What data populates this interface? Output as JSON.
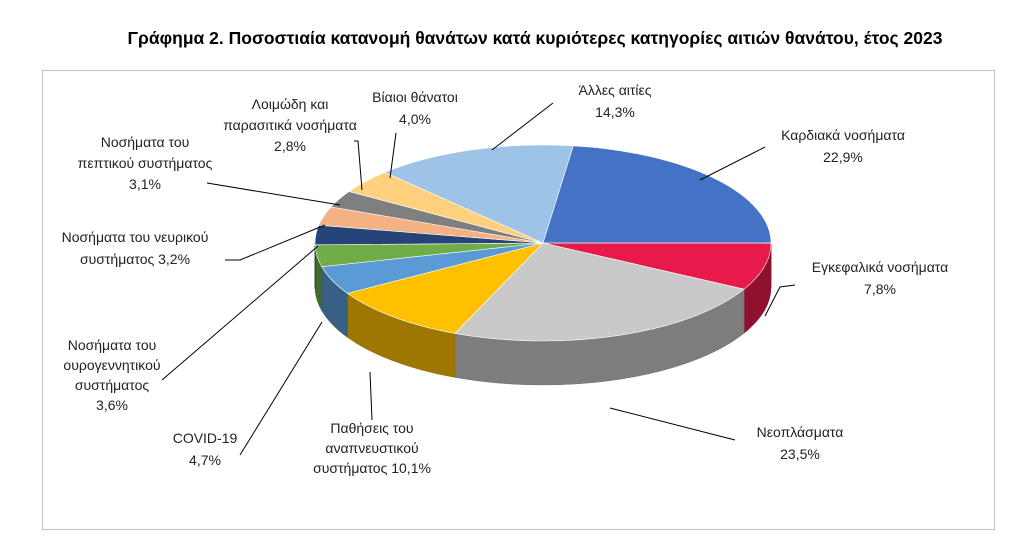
{
  "chart_data": {
    "type": "pie",
    "style": "3d",
    "title": "Γράφημα 2. Ποσοστιαία κατανομή θανάτων κατά κυριότερες κατηγορίες αιτιών θανάτου, έτος 2023",
    "unit": "%",
    "slices": [
      {
        "name": "Καρδιακά νοσήματα",
        "value": 22.9,
        "label_lines": [
          "Καρδιακά νοσήματα",
          "22,9%"
        ],
        "color": "#4472C4"
      },
      {
        "name": "Εγκεφαλικά νοσήματα",
        "value": 7.8,
        "label_lines": [
          "Εγκεφαλικά νοσήματα",
          "7,8%"
        ],
        "color": "#E8194B"
      },
      {
        "name": "Νεοπλάσματα",
        "value": 23.5,
        "label_lines": [
          "Νεοπλάσματα",
          "23,5%"
        ],
        "color": "#C9C9C9"
      },
      {
        "name": "Παθήσεις του αναπνευστικού συστήματος",
        "value": 10.1,
        "label_lines": [
          "Παθήσεις του",
          "αναπνευστικού",
          "συστήματος 10,1%"
        ],
        "color": "#FFC000"
      },
      {
        "name": "COVID-19",
        "value": 4.7,
        "label_lines": [
          "COVID-19",
          "4,7%"
        ],
        "color": "#5B9BD5"
      },
      {
        "name": "Νοσήματα του ουρογεννητικού συστήματος",
        "value": 3.6,
        "label_lines": [
          "Νοσήματα του",
          "ουρογεννητικού",
          "συστήματος",
          "3,6%"
        ],
        "color": "#70AD47"
      },
      {
        "name": "Νοσήματα του νευρικού συστήματος",
        "value": 3.2,
        "label_lines": [
          "Νοσήματα του νευρικού",
          "συστήματος 3,2%"
        ],
        "color": "#264478"
      },
      {
        "name": "Νοσήματα του πεπτικού συστήματος",
        "value": 3.1,
        "label_lines": [
          "Νοσήματα του",
          "πεπτικού συστήματος",
          "3,1%"
        ],
        "color": "#F4B183"
      },
      {
        "name": "Λοιμώδη και παρασιτικά νοσήματα",
        "value": 2.8,
        "label_lines": [
          "Λοιμώδη και",
          "παρασιτικά νοσήματα",
          "2,8%"
        ],
        "color": "#7F7F7F"
      },
      {
        "name": "Βίαιοι θάνατοι",
        "value": 4.0,
        "label_lines": [
          "Βίαιοι θάνατοι",
          "4,0%"
        ],
        "color": "#FFD17F"
      },
      {
        "name": "Άλλες αιτίες",
        "value": 14.3,
        "label_lines": [
          "Άλλες αιτίες",
          "14,3%"
        ],
        "color": "#9DC3E6"
      }
    ],
    "legend": "none"
  }
}
